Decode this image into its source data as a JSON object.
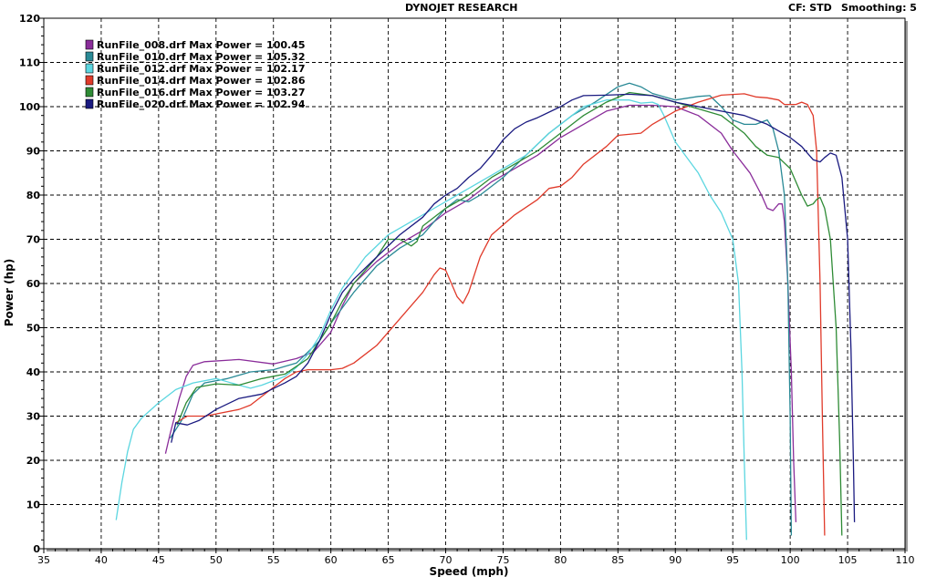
{
  "header": {
    "title": "DYNOJET RESEARCH",
    "cf_label": "CF: STD",
    "smoothing_label": "Smoothing: 5"
  },
  "chart_data": {
    "type": "line",
    "title": "DYNOJET RESEARCH",
    "xlabel": "Speed (mph)",
    "ylabel": "Power (hp)",
    "xlim": [
      35,
      110
    ],
    "ylim": [
      0,
      120
    ],
    "x_ticks": [
      35,
      40,
      45,
      50,
      55,
      60,
      65,
      70,
      75,
      80,
      85,
      90,
      95,
      100,
      105,
      110
    ],
    "y_ticks": [
      0,
      10,
      20,
      30,
      40,
      50,
      60,
      70,
      80,
      90,
      100,
      110,
      120
    ],
    "grid": true,
    "legend_position": "top-left",
    "series": [
      {
        "name": "RunFile_008.drf Max Power = 100.45",
        "color": "#8a2d9a",
        "points": [
          [
            45.6,
            21.5
          ],
          [
            46,
            26
          ],
          [
            46.8,
            34
          ],
          [
            47.4,
            39
          ],
          [
            48,
            41.5
          ],
          [
            49,
            42.3
          ],
          [
            52,
            42.8
          ],
          [
            55,
            41.8
          ],
          [
            57,
            43
          ],
          [
            58.5,
            44.5
          ],
          [
            60,
            49
          ],
          [
            61,
            55
          ],
          [
            62,
            60
          ],
          [
            64,
            65
          ],
          [
            66,
            69
          ],
          [
            68,
            72
          ],
          [
            70,
            76
          ],
          [
            72,
            79
          ],
          [
            74,
            83
          ],
          [
            76,
            86
          ],
          [
            78,
            89
          ],
          [
            80,
            93
          ],
          [
            82,
            96
          ],
          [
            84,
            99
          ],
          [
            86,
            100.3
          ],
          [
            88,
            100.3
          ],
          [
            90,
            100
          ],
          [
            92,
            98
          ],
          [
            94,
            94
          ],
          [
            95,
            90
          ],
          [
            96.5,
            85
          ],
          [
            97.5,
            80
          ],
          [
            98,
            77
          ],
          [
            98.5,
            76.5
          ],
          [
            99,
            78
          ],
          [
            99.3,
            78
          ],
          [
            99.5,
            74
          ],
          [
            99.8,
            60
          ],
          [
            100.1,
            40
          ],
          [
            100.3,
            20
          ],
          [
            100.5,
            6
          ]
        ]
      },
      {
        "name": "RunFile_010.drf Max Power = 105.32",
        "color": "#2a8a96",
        "points": [
          [
            46,
            25
          ],
          [
            47,
            29
          ],
          [
            48,
            35
          ],
          [
            49,
            37.5
          ],
          [
            51,
            38.5
          ],
          [
            53,
            40
          ],
          [
            55,
            40.5
          ],
          [
            57,
            42
          ],
          [
            59,
            47
          ],
          [
            60,
            51
          ],
          [
            62,
            58
          ],
          [
            64,
            64
          ],
          [
            66,
            68
          ],
          [
            68,
            71
          ],
          [
            70,
            77
          ],
          [
            71,
            79
          ],
          [
            72,
            78.5
          ],
          [
            73,
            80
          ],
          [
            75,
            84
          ],
          [
            77,
            89
          ],
          [
            79,
            94
          ],
          [
            81,
            98
          ],
          [
            83,
            101
          ],
          [
            85,
            104.5
          ],
          [
            86,
            105.3
          ],
          [
            87,
            104.5
          ],
          [
            88,
            103
          ],
          [
            90,
            101.5
          ],
          [
            92,
            102.3
          ],
          [
            93,
            102.5
          ],
          [
            94,
            100
          ],
          [
            95,
            97
          ],
          [
            96,
            96
          ],
          [
            97,
            96
          ],
          [
            98,
            97
          ],
          [
            98.5,
            95
          ],
          [
            99,
            90
          ],
          [
            99.5,
            80
          ],
          [
            99.8,
            60
          ],
          [
            100,
            30
          ],
          [
            100.1,
            3
          ]
        ]
      },
      {
        "name": "RunFile_012.drf Max Power = 102.17",
        "color": "#5bd6e0",
        "points": [
          [
            41.3,
            6.5
          ],
          [
            41.8,
            15
          ],
          [
            42.3,
            22
          ],
          [
            42.8,
            27
          ],
          [
            43.5,
            29.5
          ],
          [
            45,
            33
          ],
          [
            46.5,
            36
          ],
          [
            48,
            37.5
          ],
          [
            50,
            38.5
          ],
          [
            52,
            37
          ],
          [
            53,
            36.3
          ],
          [
            54,
            37
          ],
          [
            56,
            39
          ],
          [
            57,
            41
          ],
          [
            58,
            44
          ],
          [
            59,
            48
          ],
          [
            60,
            54
          ],
          [
            61,
            59
          ],
          [
            63,
            66
          ],
          [
            65,
            71
          ],
          [
            67,
            74
          ],
          [
            69,
            77
          ],
          [
            71,
            80
          ],
          [
            73,
            83
          ],
          [
            75,
            86
          ],
          [
            77,
            89
          ],
          [
            79,
            94
          ],
          [
            81,
            98
          ],
          [
            82,
            100
          ],
          [
            84,
            101.5
          ],
          [
            86,
            101.5
          ],
          [
            87,
            100.8
          ],
          [
            88,
            101
          ],
          [
            88.5,
            100.5
          ],
          [
            89,
            98
          ],
          [
            90,
            92
          ],
          [
            92,
            85
          ],
          [
            93,
            80
          ],
          [
            94,
            76
          ],
          [
            95,
            70
          ],
          [
            95.5,
            60
          ],
          [
            95.8,
            40
          ],
          [
            96,
            20
          ],
          [
            96.2,
            2
          ]
        ]
      },
      {
        "name": "RunFile_014.drf Max Power = 102.86",
        "color": "#e03a2a",
        "points": [
          [
            46.5,
            28.5
          ],
          [
            47.5,
            30
          ],
          [
            49,
            30
          ],
          [
            50,
            30.5
          ],
          [
            52,
            31.5
          ],
          [
            53,
            32.5
          ],
          [
            55,
            36.5
          ],
          [
            56,
            38.5
          ],
          [
            57,
            40
          ],
          [
            58,
            40.5
          ],
          [
            60,
            40.5
          ],
          [
            61,
            40.8
          ],
          [
            62,
            42
          ],
          [
            64,
            46
          ],
          [
            66,
            52
          ],
          [
            68,
            58
          ],
          [
            69,
            62
          ],
          [
            69.5,
            63.5
          ],
          [
            70,
            63
          ],
          [
            70.5,
            60
          ],
          [
            71,
            57
          ],
          [
            71.5,
            55.5
          ],
          [
            72,
            58
          ],
          [
            73,
            66
          ],
          [
            74,
            71
          ],
          [
            76,
            75.5
          ],
          [
            78,
            79
          ],
          [
            79,
            81.5
          ],
          [
            80,
            82
          ],
          [
            81,
            84
          ],
          [
            82,
            87
          ],
          [
            84,
            91
          ],
          [
            85,
            93.5
          ],
          [
            87,
            94
          ],
          [
            88,
            96
          ],
          [
            90,
            99
          ],
          [
            92,
            101
          ],
          [
            94,
            102.6
          ],
          [
            96,
            102.9
          ],
          [
            97,
            102.2
          ],
          [
            98,
            102
          ],
          [
            99,
            101.5
          ],
          [
            99.5,
            100.5
          ],
          [
            100.5,
            100.5
          ],
          [
            101,
            101
          ],
          [
            101.5,
            100.5
          ],
          [
            102,
            98
          ],
          [
            102.3,
            90
          ],
          [
            102.6,
            60
          ],
          [
            102.8,
            30
          ],
          [
            103,
            3
          ]
        ]
      },
      {
        "name": "RunFile_016.drf Max Power = 103.27",
        "color": "#2e8b35",
        "points": [
          [
            46.6,
            28
          ],
          [
            47.4,
            33
          ],
          [
            48.3,
            36.5
          ],
          [
            50,
            37.3
          ],
          [
            52,
            37
          ],
          [
            54,
            38.5
          ],
          [
            56,
            39.5
          ],
          [
            58,
            43
          ],
          [
            59,
            47
          ],
          [
            60,
            51
          ],
          [
            61,
            56
          ],
          [
            62,
            60
          ],
          [
            64,
            66
          ],
          [
            65,
            70
          ],
          [
            66,
            70
          ],
          [
            67,
            68.5
          ],
          [
            67.5,
            69.5
          ],
          [
            68,
            73
          ],
          [
            70,
            77
          ],
          [
            72,
            80
          ],
          [
            74,
            84
          ],
          [
            76,
            87
          ],
          [
            78,
            90
          ],
          [
            80,
            94
          ],
          [
            82,
            98
          ],
          [
            84,
            101
          ],
          [
            86,
            103.2
          ],
          [
            88,
            102.5
          ],
          [
            90,
            101
          ],
          [
            92,
            99.5
          ],
          [
            94,
            98
          ],
          [
            96,
            94
          ],
          [
            97,
            91
          ],
          [
            98,
            89
          ],
          [
            99,
            88.5
          ],
          [
            100,
            86
          ],
          [
            101,
            80
          ],
          [
            101.5,
            77.5
          ],
          [
            102,
            78
          ],
          [
            102.3,
            79
          ],
          [
            102.6,
            79.5
          ],
          [
            103,
            77
          ],
          [
            103.5,
            70
          ],
          [
            104,
            50
          ],
          [
            104.3,
            25
          ],
          [
            104.5,
            3
          ]
        ]
      },
      {
        "name": "RunFile_020.drf Max Power = 102.94",
        "color": "#1a1a80",
        "points": [
          [
            46.1,
            24
          ],
          [
            46.5,
            28.5
          ],
          [
            47.5,
            28
          ],
          [
            48.5,
            29
          ],
          [
            50,
            31.5
          ],
          [
            52,
            34
          ],
          [
            54,
            35
          ],
          [
            56,
            37.5
          ],
          [
            57,
            39
          ],
          [
            58,
            42
          ],
          [
            59,
            47
          ],
          [
            60,
            53
          ],
          [
            61,
            58
          ],
          [
            62,
            61
          ],
          [
            64,
            66
          ],
          [
            66,
            71
          ],
          [
            68,
            75
          ],
          [
            69,
            78
          ],
          [
            70,
            80
          ],
          [
            71,
            81.5
          ],
          [
            72,
            84
          ],
          [
            73,
            86
          ],
          [
            74,
            89
          ],
          [
            75,
            92.5
          ],
          [
            76,
            95
          ],
          [
            77,
            96.5
          ],
          [
            78,
            97.5
          ],
          [
            80,
            100
          ],
          [
            81,
            101.5
          ],
          [
            82,
            102.5
          ],
          [
            84,
            102.6
          ],
          [
            86,
            102.8
          ],
          [
            88,
            102.5
          ],
          [
            90,
            101
          ],
          [
            92,
            100
          ],
          [
            94,
            99
          ],
          [
            96,
            98
          ],
          [
            98,
            96
          ],
          [
            100,
            93
          ],
          [
            101,
            91
          ],
          [
            102,
            88
          ],
          [
            102.6,
            87.5
          ],
          [
            103,
            88.5
          ],
          [
            103.5,
            89.5
          ],
          [
            104,
            89
          ],
          [
            104.5,
            84
          ],
          [
            105,
            70
          ],
          [
            105.3,
            45
          ],
          [
            105.5,
            20
          ],
          [
            105.6,
            6
          ]
        ]
      }
    ]
  }
}
